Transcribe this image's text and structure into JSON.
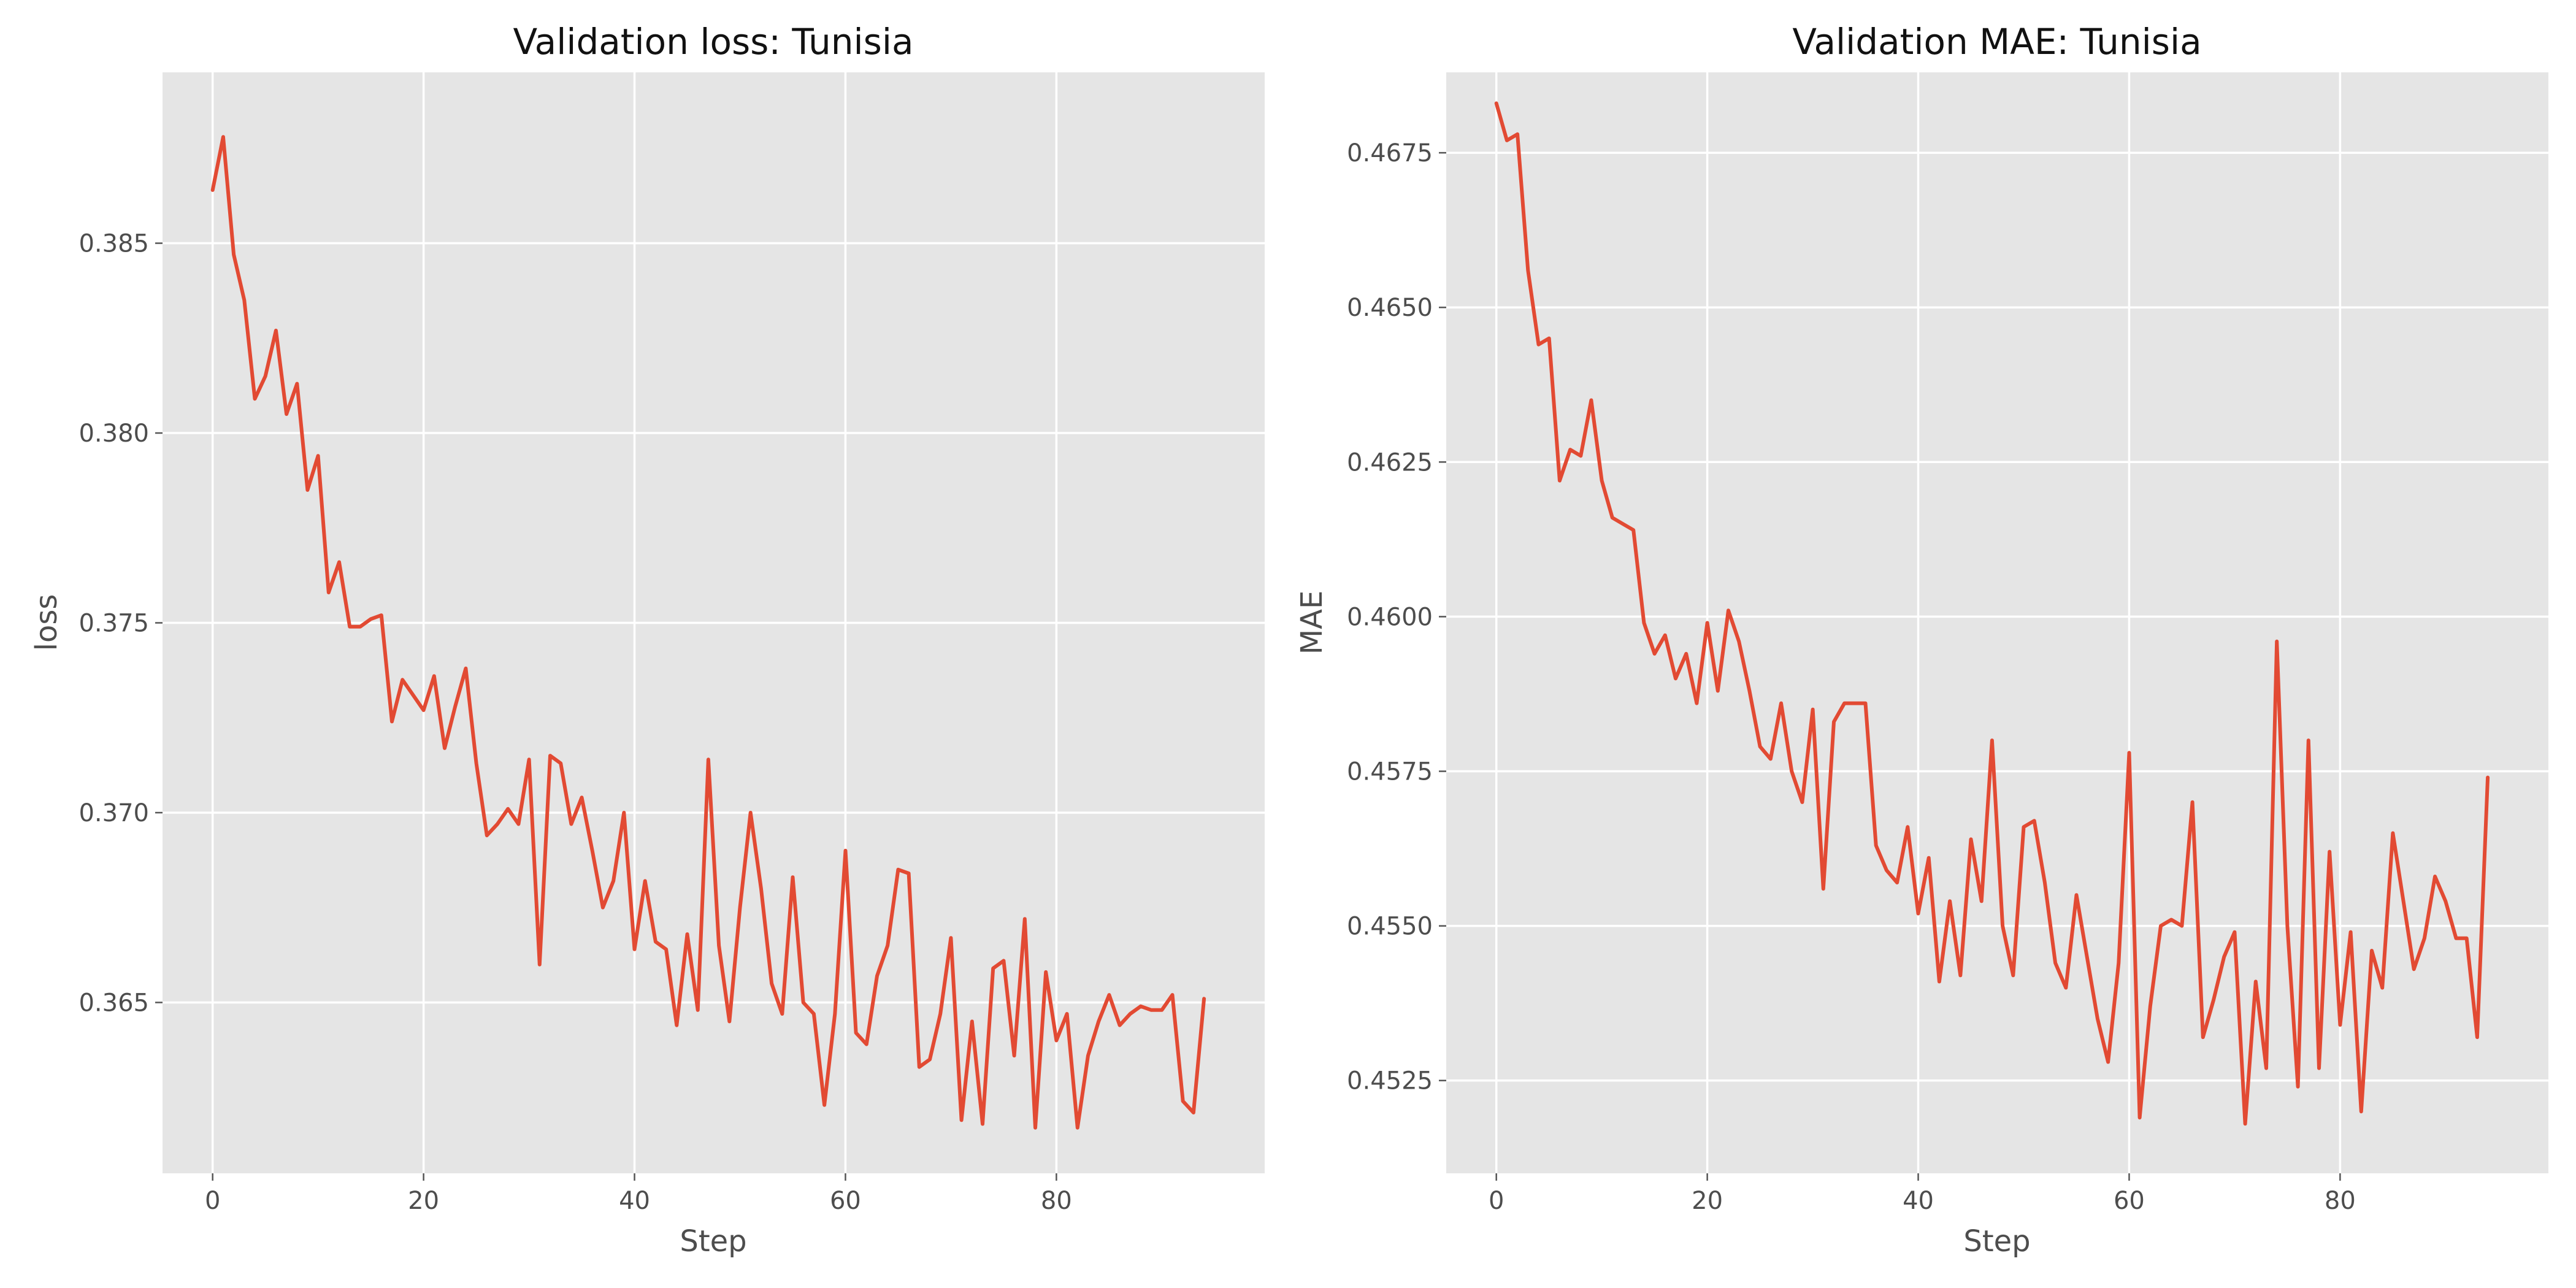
{
  "chart_data": [
    {
      "type": "line",
      "title": "Validation loss: Tunisia",
      "xlabel": "Step",
      "ylabel": "loss",
      "xlim": [
        -4.75,
        99.75
      ],
      "ylim": [
        0.3605,
        0.3895
      ],
      "xticks": [
        0,
        20,
        40,
        60,
        80
      ],
      "xtick_labels": [
        "0",
        "20",
        "40",
        "60",
        "80"
      ],
      "yticks": [
        0.365,
        0.37,
        0.375,
        0.38,
        0.385
      ],
      "ytick_labels": [
        "0.365",
        "0.370",
        "0.375",
        "0.380",
        "0.385"
      ],
      "grid": true,
      "series": [
        {
          "color": "#e24a33",
          "x": [
            0,
            1,
            2,
            3,
            4,
            5,
            6,
            7,
            8,
            9,
            10,
            11,
            12,
            13,
            14,
            15,
            16,
            17,
            18,
            19,
            20,
            21,
            22,
            23,
            24,
            25,
            26,
            27,
            28,
            29,
            30,
            31,
            32,
            33,
            34,
            35,
            36,
            37,
            38,
            39,
            40,
            41,
            42,
            43,
            44,
            45,
            46,
            47,
            48,
            49,
            50,
            51,
            52,
            53,
            54,
            55,
            56,
            57,
            58,
            59,
            60,
            61,
            62,
            63,
            64,
            65,
            66,
            67,
            68,
            69,
            70,
            71,
            72,
            73,
            74,
            75,
            76,
            77,
            78,
            79,
            80,
            81,
            82,
            83,
            84,
            85,
            86,
            87,
            88,
            89,
            90,
            91,
            92,
            93,
            94
          ],
          "y": [
            0.3864,
            0.3878,
            0.3847,
            0.3835,
            0.3809,
            0.3815,
            0.3827,
            0.3805,
            0.3813,
            0.3785,
            0.3794,
            0.3758,
            0.3766,
            0.3749,
            0.3749,
            0.3751,
            0.3752,
            0.3724,
            0.3735,
            0.3731,
            0.3727,
            0.3736,
            0.3717,
            0.3728,
            0.3738,
            0.3713,
            0.3694,
            0.3697,
            0.3701,
            0.3697,
            0.3714,
            0.366,
            0.3715,
            0.3713,
            0.3697,
            0.3704,
            0.369,
            0.3675,
            0.3682,
            0.37,
            0.3664,
            0.3682,
            0.3666,
            0.3664,
            0.3644,
            0.3668,
            0.3648,
            0.3714,
            0.3665,
            0.3645,
            0.3675,
            0.37,
            0.368,
            0.3655,
            0.3647,
            0.3683,
            0.365,
            0.3647,
            0.3623,
            0.3647,
            0.369,
            0.3642,
            0.3639,
            0.3657,
            0.3665,
            0.3685,
            0.3684,
            0.3633,
            0.3635,
            0.3647,
            0.3667,
            0.3619,
            0.3645,
            0.3618,
            0.3659,
            0.3661,
            0.3636,
            0.3672,
            0.3617,
            0.3658,
            0.364,
            0.3647,
            0.3617,
            0.3636,
            0.3645,
            0.3652,
            0.3644,
            0.3647,
            0.3649,
            0.3648,
            0.3648,
            0.3652,
            0.3624,
            0.3621,
            0.3651
          ]
        }
      ]
    },
    {
      "type": "line",
      "title": "Validation MAE: Tunisia",
      "xlabel": "Step",
      "ylabel": "MAE",
      "xlim": [
        -4.75,
        99.75
      ],
      "ylim": [
        0.451,
        0.4688
      ],
      "xticks": [
        0,
        20,
        40,
        60,
        80
      ],
      "xtick_labels": [
        "0",
        "20",
        "40",
        "60",
        "80"
      ],
      "yticks": [
        0.4525,
        0.455,
        0.4575,
        0.46,
        0.4625,
        0.465,
        0.4675
      ],
      "ytick_labels": [
        "0.4525",
        "0.4550",
        "0.4575",
        "0.4600",
        "0.4625",
        "0.4650",
        "0.4675"
      ],
      "grid": true,
      "series": [
        {
          "color": "#e24a33",
          "x": [
            0,
            1,
            2,
            3,
            4,
            5,
            6,
            7,
            8,
            9,
            10,
            11,
            12,
            13,
            14,
            15,
            16,
            17,
            18,
            19,
            20,
            21,
            22,
            23,
            24,
            25,
            26,
            27,
            28,
            29,
            30,
            31,
            32,
            33,
            34,
            35,
            36,
            37,
            38,
            39,
            40,
            41,
            42,
            43,
            44,
            45,
            46,
            47,
            48,
            49,
            50,
            51,
            52,
            53,
            54,
            55,
            56,
            57,
            58,
            59,
            60,
            61,
            62,
            63,
            64,
            65,
            66,
            67,
            68,
            69,
            70,
            71,
            72,
            73,
            74,
            75,
            76,
            77,
            78,
            79,
            80,
            81,
            82,
            83,
            84,
            85,
            86,
            87,
            88,
            89,
            90,
            91,
            92,
            93,
            94
          ],
          "y": [
            0.4683,
            0.4677,
            0.4678,
            0.4656,
            0.4644,
            0.4645,
            0.4622,
            0.4627,
            0.4626,
            0.4635,
            0.4622,
            0.4616,
            0.4615,
            0.4614,
            0.4599,
            0.4594,
            0.4597,
            0.459,
            0.4594,
            0.4586,
            0.4599,
            0.4588,
            0.4601,
            0.4596,
            0.4588,
            0.4579,
            0.4577,
            0.4586,
            0.4575,
            0.457,
            0.4585,
            0.4556,
            0.4583,
            0.4586,
            0.4586,
            0.4586,
            0.4563,
            0.4559,
            0.4557,
            0.4566,
            0.4552,
            0.4561,
            0.4541,
            0.4554,
            0.4542,
            0.4564,
            0.4554,
            0.458,
            0.455,
            0.4542,
            0.4566,
            0.4567,
            0.4557,
            0.4544,
            0.454,
            0.4555,
            0.4545,
            0.4535,
            0.4528,
            0.4544,
            0.4578,
            0.4519,
            0.4537,
            0.455,
            0.4551,
            0.455,
            0.457,
            0.4532,
            0.4538,
            0.4545,
            0.4549,
            0.4518,
            0.4541,
            0.4527,
            0.4596,
            0.455,
            0.4524,
            0.458,
            0.4527,
            0.4562,
            0.4534,
            0.4549,
            0.452,
            0.4546,
            0.454,
            0.4565,
            0.4554,
            0.4543,
            0.4548,
            0.4558,
            0.4554,
            0.4548,
            0.4548,
            0.4532,
            0.4574
          ]
        }
      ]
    }
  ]
}
